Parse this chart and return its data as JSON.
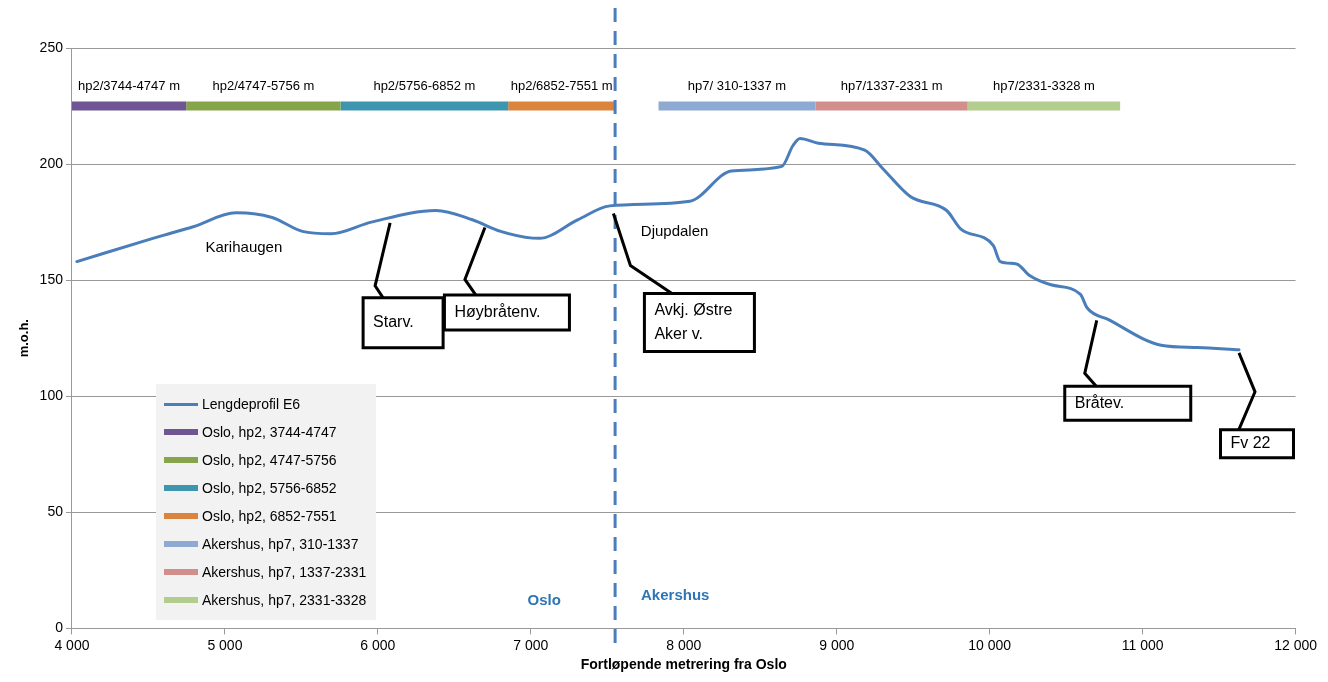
{
  "chart_data": {
    "type": "line",
    "xlabel": "Fortløpende metrering fra Oslo",
    "ylabel": "m.o.h.",
    "xlim": [
      4000,
      12000
    ],
    "xticks": [
      {
        "value": 4000,
        "label": "4 000"
      },
      {
        "value": 5000,
        "label": "5 000"
      },
      {
        "value": 6000,
        "label": "6 000"
      },
      {
        "value": 7000,
        "label": "7 000"
      },
      {
        "value": 8000,
        "label": "8 000"
      },
      {
        "value": 9000,
        "label": "9 000"
      },
      {
        "value": 10000,
        "label": "10 000"
      },
      {
        "value": 11000,
        "label": "11 000"
      },
      {
        "value": 12000,
        "label": "12 000"
      }
    ],
    "ylim": [
      0,
      250
    ],
    "yticks": [
      0,
      50,
      100,
      150,
      200,
      250
    ],
    "grid": "y",
    "legend": "bottom left",
    "marker": "none",
    "series": [
      {
        "name": "Lengdeprofil E6",
        "color": "#4a7ebb",
        "x": [
          4032,
          4529,
          4635,
          4793,
          5071,
          5309,
          5507,
          5693,
          5957,
          6380,
          6618,
          6803,
          7055,
          7306,
          7517,
          8040,
          8311,
          8641,
          8714,
          8760,
          8879,
          9183,
          9302,
          9481,
          9719,
          9812,
          10023,
          10069,
          10175,
          10261,
          10400,
          10592,
          10638,
          10777,
          11121,
          11359,
          11630
        ],
        "values": [
          158,
          168,
          170,
          173,
          179,
          177,
          171,
          170,
          175,
          180,
          176,
          171,
          168,
          176,
          182,
          184,
          197,
          199,
          208,
          211,
          209,
          206,
          198,
          186,
          180,
          172,
          165,
          158,
          157,
          152,
          148,
          144,
          138,
          133,
          122,
          121,
          120
        ]
      },
      {
        "name": "Oslo, hp2, 3744-4747",
        "color": "#6f5591",
        "x": [
          4000,
          4747
        ],
        "values": [
          225,
          225
        ]
      },
      {
        "name": "Oslo, hp2, 4747-5756",
        "color": "#86a44a",
        "x": [
          4747,
          5756
        ],
        "values": [
          225,
          225
        ]
      },
      {
        "name": "Oslo, hp2, 5756-6852",
        "color": "#3d96ae",
        "x": [
          5756,
          6852
        ],
        "values": [
          225,
          225
        ]
      },
      {
        "name": "Oslo, hp2, 6852-7551",
        "color": "#db843d",
        "x": [
          6852,
          7551
        ],
        "values": [
          225,
          225
        ]
      },
      {
        "name": "Akershus, hp7, 310-1337",
        "color": "#8ea9d2",
        "x": [
          7835,
          8862
        ],
        "values": [
          225,
          225
        ]
      },
      {
        "name": "Akershus, hp7, 1337-2331",
        "color": "#d28e8c",
        "x": [
          8862,
          9856
        ],
        "values": [
          225,
          225
        ]
      },
      {
        "name": "Akershus, hp7, 2331-3328",
        "color": "#b3cd8e",
        "x": [
          9856,
          10853
        ],
        "values": [
          225,
          225
        ]
      }
    ],
    "ref_lines": [
      {
        "axis": "x",
        "value": 7551,
        "color": "#4a7ebb",
        "line_style": "dashed"
      }
    ],
    "annotations": [
      {
        "text": "hp2/3744-4747 m",
        "x": 4373,
        "y": 225
      },
      {
        "text": "hp2/4747-5756 m",
        "x": 5252,
        "y": 225
      },
      {
        "text": "hp2/5756-6852 m",
        "x": 6304,
        "y": 225
      },
      {
        "text": "hp2/6852-7551 m",
        "x": 7202,
        "y": 225
      },
      {
        "text": "hp7/ 310-1337 m",
        "x": 8348,
        "y": 225
      },
      {
        "text": "hp7/1337-2331 m",
        "x": 9359,
        "y": 225
      },
      {
        "text": "hp7/2331-3328 m",
        "x": 10355,
        "y": 225
      },
      "Karihaugen",
      {
        "text": "Starv.",
        "x": 6080,
        "y": 176
      },
      {
        "text": "Høybråtenv.",
        "x": 6700,
        "y": 174
      },
      "Djupdalen",
      {
        "text": "Avkj. Østre\nAker v.",
        "x": 7540,
        "y": 180
      },
      {
        "text": "Bråtev.",
        "x": 10700,
        "y": 134
      },
      {
        "text": "Fv 22",
        "x": 11630,
        "y": 120
      },
      "Oslo",
      "Akershus"
    ]
  }
}
